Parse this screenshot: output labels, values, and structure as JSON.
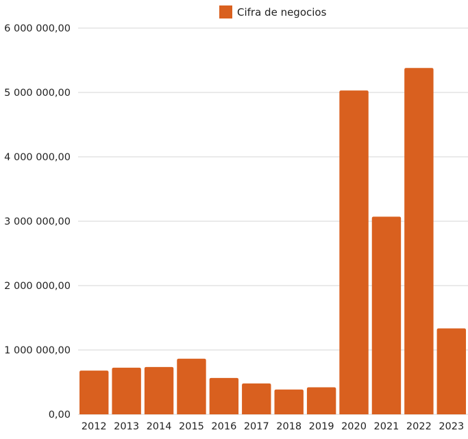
{
  "chart_data": {
    "type": "bar",
    "categories": [
      "2012",
      "2013",
      "2014",
      "2015",
      "2016",
      "2017",
      "2018",
      "2019",
      "2020",
      "2021",
      "2022",
      "2023"
    ],
    "series": [
      {
        "name": "Cifra de negocios",
        "color": "#d9601f",
        "values": [
          680000,
          725000,
          735000,
          865000,
          565000,
          480000,
          385000,
          420000,
          5030000,
          3070000,
          5380000,
          1335000
        ]
      }
    ],
    "y_ticks": [
      "0,00",
      "1 000 000,00",
      "2 000 000,00",
      "3 000 000,00",
      "4 000 000,00",
      "5 000 000,00",
      "6 000 000,00"
    ],
    "ylim": [
      0,
      6000000
    ],
    "title": "",
    "xlabel": "",
    "ylabel": "",
    "grid": true,
    "legend_position": "top-center"
  }
}
